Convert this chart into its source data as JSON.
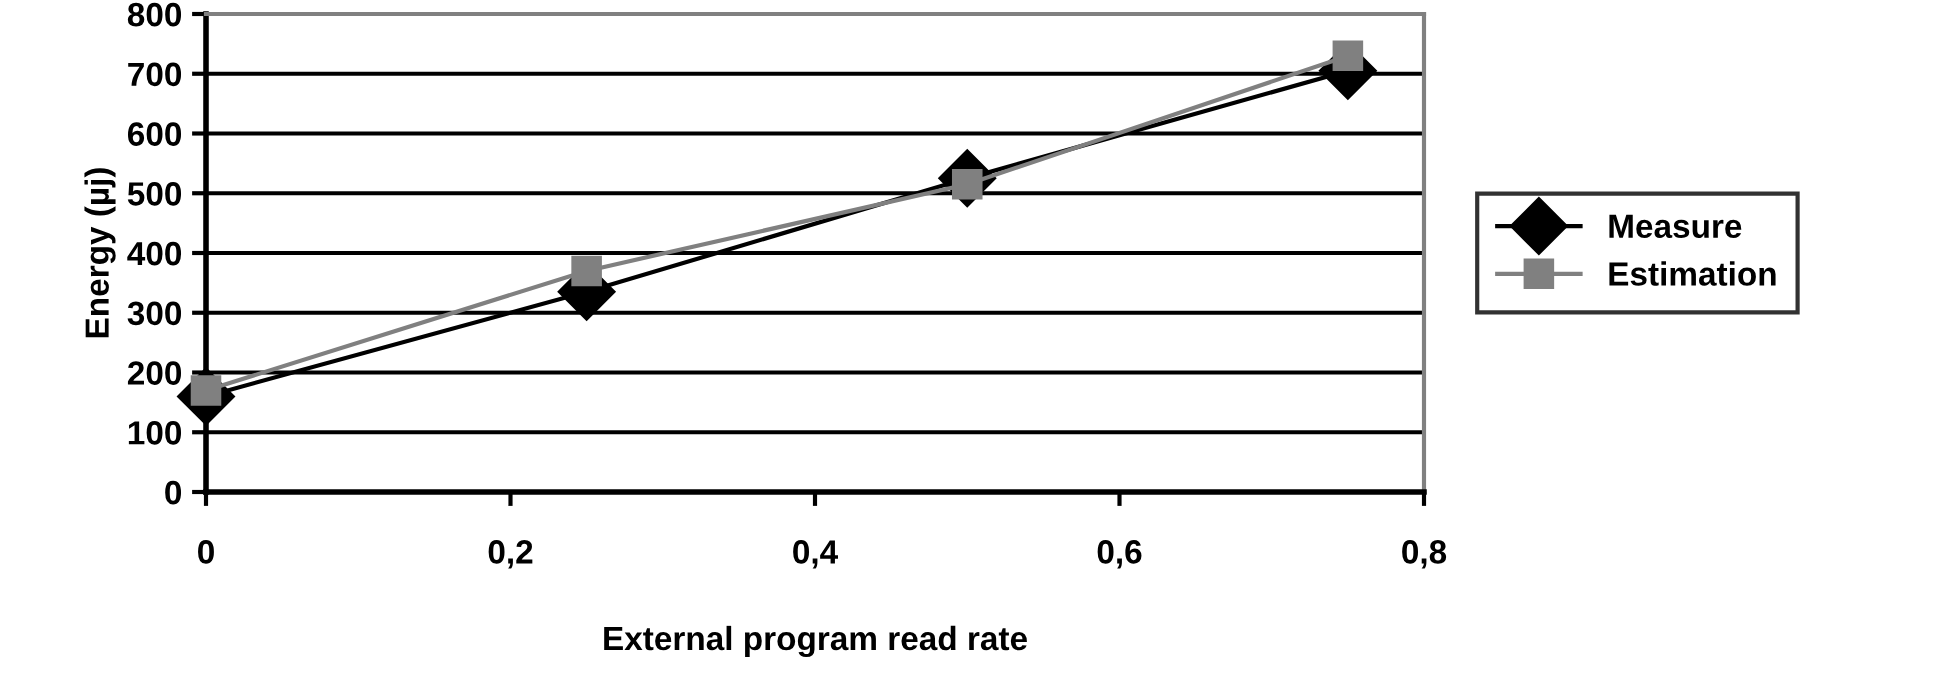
{
  "chart_data": {
    "type": "line",
    "xlabel": "External program read rate",
    "ylabel": "Energy (µj)",
    "x": [
      0,
      0.25,
      0.5,
      0.75
    ],
    "series": [
      {
        "name": "Measure",
        "color": "#000000",
        "marker": "diamond",
        "values": [
          160,
          335,
          525,
          705
        ]
      },
      {
        "name": "Estimation",
        "color": "#808080",
        "marker": "square",
        "values": [
          170,
          370,
          515,
          730
        ]
      }
    ],
    "xlim": [
      0,
      0.8
    ],
    "xticks": [
      0,
      {
        "value": 0.2,
        "label": "0,2"
      },
      {
        "value": 0.4,
        "label": "0,4"
      },
      {
        "value": 0.6,
        "label": "0,6"
      },
      {
        "value": 0.8,
        "label": "0,8"
      }
    ],
    "ylim": [
      0,
      800
    ],
    "yticks": [
      0,
      100,
      200,
      300,
      400,
      500,
      600,
      700,
      800
    ],
    "grid": "y",
    "legend": "right"
  }
}
